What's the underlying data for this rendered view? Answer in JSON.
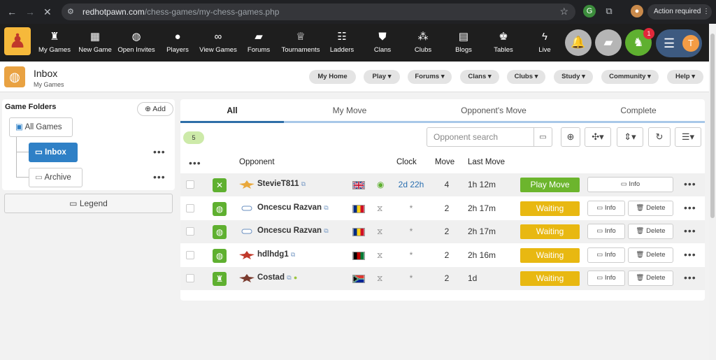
{
  "browser": {
    "url_host": "redhotpawn.com",
    "url_path": "/chess-games/my-chess-games.php",
    "action_label": "Action required"
  },
  "nav": [
    {
      "label": "My Games",
      "icon": "chess-pieces-icon"
    },
    {
      "label": "New Game",
      "icon": "new-game-icon"
    },
    {
      "label": "Open Invites",
      "icon": "globe-icon"
    },
    {
      "label": "Players",
      "icon": "person-icon"
    },
    {
      "label": "View Games",
      "icon": "binoculars-icon"
    },
    {
      "label": "Forums",
      "icon": "chat-icon"
    },
    {
      "label": "Tournaments",
      "icon": "trophy-icon"
    },
    {
      "label": "Ladders",
      "icon": "ladder-icon"
    },
    {
      "label": "Clans",
      "icon": "shield-icon"
    },
    {
      "label": "Clubs",
      "icon": "group-icon"
    },
    {
      "label": "Blogs",
      "icon": "blog-icon"
    },
    {
      "label": "Tables",
      "icon": "king-icon"
    },
    {
      "label": "Live",
      "icon": "lightning-icon"
    }
  ],
  "notification_count": "1",
  "user_initial": "T",
  "header": {
    "title": "Inbox",
    "subtitle": "My Games",
    "menus": [
      "My Home",
      "Play ▾",
      "Forums ▾",
      "Clans ▾",
      "Clubs ▾",
      "Study ▾",
      "Community ▾",
      "Help ▾"
    ]
  },
  "sidebar": {
    "title": "Game Folders",
    "add_label": "Add",
    "folders": [
      "All Games",
      "Inbox",
      "Archive"
    ],
    "legend_label": "Legend"
  },
  "tabs": [
    "All",
    "My Move",
    "Opponent's Move",
    "Complete"
  ],
  "game_count": "5",
  "search_placeholder": "Opponent search",
  "columns": {
    "opponent": "Opponent",
    "clock": "Clock",
    "move": "Move",
    "last_move": "Last Move"
  },
  "games": [
    {
      "name": "StevieT811",
      "clock": "2d 22h",
      "move": "4",
      "last_move": "1h 12m",
      "status": "Play Move",
      "info": "Info",
      "delete": ""
    },
    {
      "name": "Oncescu Razvan",
      "clock": "*",
      "move": "2",
      "last_move": "2h 17m",
      "status": "Waiting",
      "info": "Info",
      "delete": "Delete"
    },
    {
      "name": "Oncescu Razvan",
      "clock": "*",
      "move": "2",
      "last_move": "2h 17m",
      "status": "Waiting",
      "info": "Info",
      "delete": "Delete"
    },
    {
      "name": "hdlhdg1",
      "clock": "*",
      "move": "2",
      "last_move": "2h 16m",
      "status": "Waiting",
      "info": "Info",
      "delete": "Delete"
    },
    {
      "name": "Costad",
      "clock": "*",
      "move": "2",
      "last_move": "1d",
      "status": "Waiting",
      "info": "Info",
      "delete": "Delete"
    }
  ],
  "colors": {
    "play_move": "#6cb52d",
    "waiting": "#e8b811",
    "selected_folder": "#2f80c6",
    "topnav": "#1e1e1e"
  }
}
